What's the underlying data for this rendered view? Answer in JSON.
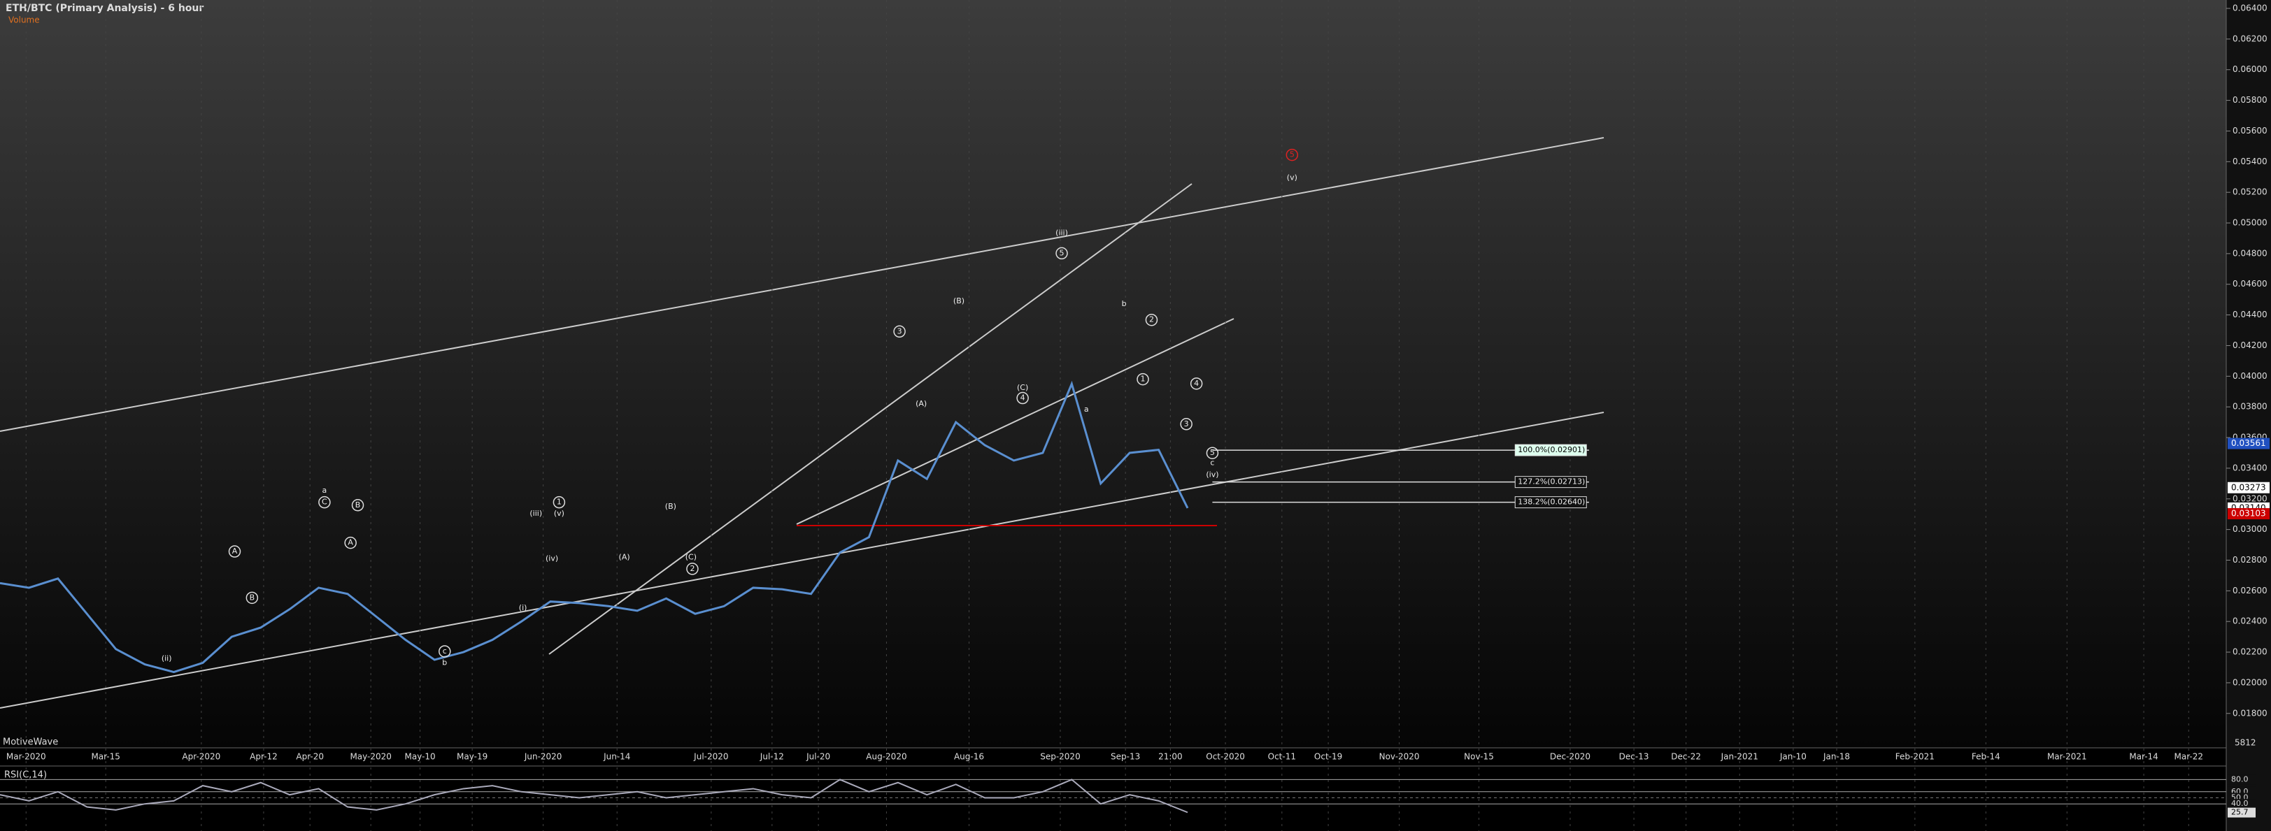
{
  "header": {
    "title": "ETH/BTC (Primary Analysis) - 6 hour",
    "legend": "Volume",
    "watermark": "MotiveWave"
  },
  "price_axis": {
    "ylim": [
      0.018,
      0.064
    ],
    "ticks": [
      {
        "value": 0.064,
        "label": "0.06400"
      },
      {
        "value": 0.062,
        "label": "0.06200"
      },
      {
        "value": 0.06,
        "label": "0.06000"
      },
      {
        "value": 0.058,
        "label": "0.05800"
      },
      {
        "value": 0.056,
        "label": "0.05600"
      },
      {
        "value": 0.054,
        "label": "0.05400"
      },
      {
        "value": 0.052,
        "label": "0.05200"
      },
      {
        "value": 0.05,
        "label": "0.05000"
      },
      {
        "value": 0.048,
        "label": "0.04800"
      },
      {
        "value": 0.046,
        "label": "0.04600"
      },
      {
        "value": 0.044,
        "label": "0.04400"
      },
      {
        "value": 0.042,
        "label": "0.04200"
      },
      {
        "value": 0.04,
        "label": "0.04000"
      },
      {
        "value": 0.038,
        "label": "0.03800"
      },
      {
        "value": 0.036,
        "label": "0.03600"
      },
      {
        "value": 0.034,
        "label": "0.03400"
      },
      {
        "value": 0.032,
        "label": "0.03200"
      },
      {
        "value": 0.03,
        "label": "0.03000"
      },
      {
        "value": 0.028,
        "label": "0.02800"
      },
      {
        "value": 0.026,
        "label": "0.02600"
      },
      {
        "value": 0.024,
        "label": "0.02400"
      },
      {
        "value": 0.022,
        "label": "0.02200"
      },
      {
        "value": 0.02,
        "label": "0.02000"
      },
      {
        "value": 0.018,
        "label": "0.01800"
      }
    ],
    "markers": [
      {
        "value": 0.03561,
        "label": "0.03561"
      },
      {
        "value": 0.03273,
        "label": "0.03273"
      },
      {
        "value": 0.0314,
        "label": "0.03140"
      },
      {
        "value": 0.03103,
        "label": "0.03103"
      }
    ],
    "volume_label": "5812"
  },
  "time_axis": [
    "Mar-2020",
    "Mar-15",
    "Apr-2020",
    "Apr-12",
    "Apr-20",
    "May-2020",
    "May-10",
    "May-19",
    "Jun-2020",
    "Jun-14",
    "Jul-2020",
    "Jul-12",
    "Jul-20",
    "Aug-2020",
    "Aug-16",
    "Sep-2020",
    "Sep-13",
    "21:00",
    "Oct-2020",
    "Oct-11",
    "Oct-19",
    "Nov-2020",
    "Nov-15",
    "Dec-2020",
    "Dec-13",
    "Dec-22",
    "Jan-2021",
    "Jan-10",
    "Jan-18",
    "Feb-2021",
    "Feb-14",
    "Mar-2021",
    "Mar-14",
    "Mar-22"
  ],
  "price_trace": [
    0.0265,
    0.0262,
    0.0268,
    0.0245,
    0.0222,
    0.0212,
    0.0207,
    0.0213,
    0.023,
    0.0236,
    0.0248,
    0.0262,
    0.0258,
    0.0243,
    0.0228,
    0.0215,
    0.022,
    0.0228,
    0.024,
    0.0253,
    0.0252,
    0.025,
    0.0247,
    0.0255,
    0.0245,
    0.025,
    0.0262,
    0.0261,
    0.0258,
    0.0285,
    0.0295,
    0.0345,
    0.0333,
    0.037,
    0.0355,
    0.0345,
    0.035,
    0.0395,
    0.033,
    0.035,
    0.0352,
    0.0314
  ],
  "waves": [
    "(ii)",
    "c",
    "b",
    "A",
    "B",
    "a",
    "C",
    "A",
    "B",
    "(i)",
    "(iii)",
    "1",
    "(v)",
    "(iv)",
    "(B)",
    "(A)",
    "(C)",
    "2",
    "3",
    "(A)",
    "(B)",
    "(C)",
    "4",
    "(iii)",
    "5",
    "a",
    "b",
    "2",
    "1",
    "4",
    "3",
    "5",
    "c",
    "(iv)",
    "(v)",
    "5"
  ],
  "fib": [
    "100.0%(0.02901)",
    "127.2%(0.02713)",
    "138.2%(0.02640)"
  ],
  "rsi": {
    "title": "RSI(C,14)",
    "ylim": [
      0,
      100
    ],
    "ticks": [
      {
        "value": 80,
        "label": "80.0"
      },
      {
        "value": 60,
        "label": "60.0"
      },
      {
        "value": 50,
        "label": "50.0"
      },
      {
        "value": 40,
        "label": "40.0"
      },
      {
        "value": 25.7,
        "label": "25.7"
      }
    ],
    "trace": [
      55,
      45,
      60,
      35,
      30,
      40,
      45,
      70,
      60,
      75,
      55,
      65,
      35,
      30,
      40,
      55,
      65,
      70,
      60,
      55,
      50,
      55,
      60,
      50,
      55,
      60,
      65,
      55,
      50,
      80,
      60,
      75,
      55,
      72,
      50,
      50,
      60,
      80,
      40,
      55,
      45,
      26
    ]
  }
}
